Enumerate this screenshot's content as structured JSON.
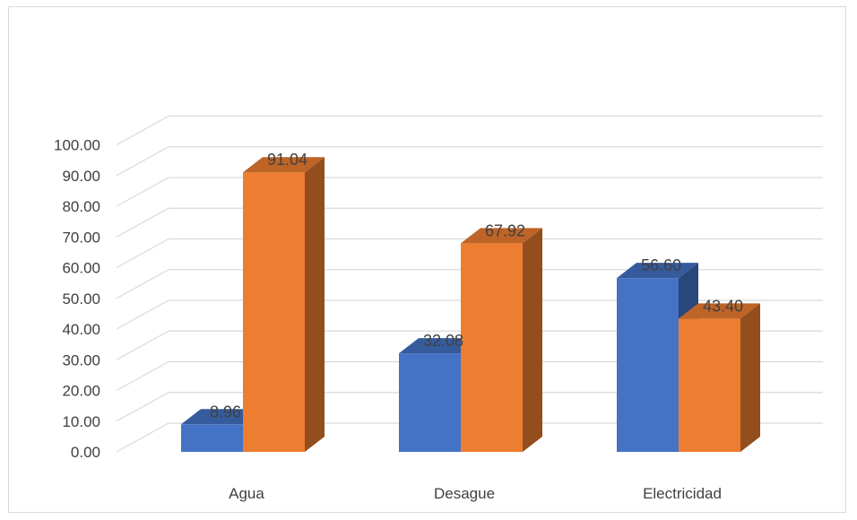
{
  "chart_data": {
    "type": "bar",
    "style": "3d-clustered-column",
    "categories": [
      "Agua",
      "Desague",
      "Electricidad"
    ],
    "series": [
      {
        "values": [
          8.96,
          32.08,
          56.6
        ],
        "labels": [
          "8.96",
          "32.08",
          "56.60"
        ],
        "color": "#4472C4"
      },
      {
        "values": [
          91.04,
          67.92,
          43.4
        ],
        "labels": [
          "91.04",
          "67.92",
          "43.40"
        ],
        "color": "#ED7D31"
      }
    ],
    "y_ticks": [
      "0.00",
      "10.00",
      "20.00",
      "30.00",
      "40.00",
      "50.00",
      "60.00",
      "70.00",
      "80.00",
      "90.00",
      "100.00"
    ],
    "ylim": [
      0,
      100
    ],
    "grid": true,
    "legend": "none"
  }
}
